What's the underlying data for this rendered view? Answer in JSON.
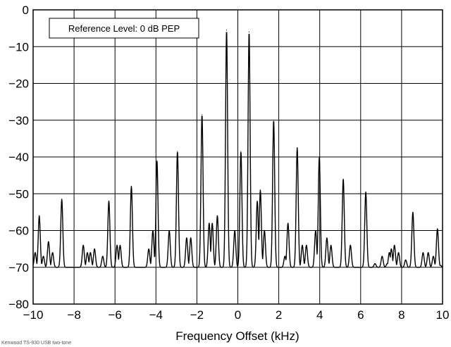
{
  "chart_data": {
    "type": "line",
    "xlabel": "Frequency Offset (kHz)",
    "ylabel": "",
    "xlim": [
      -10,
      10
    ],
    "ylim": [
      -80,
      0
    ],
    "xticks": [
      -10,
      -8,
      -6,
      -4,
      -2,
      0,
      2,
      4,
      6,
      8,
      10
    ],
    "yticks": [
      0,
      -10,
      -20,
      -30,
      -40,
      -50,
      -60,
      -70,
      -80
    ],
    "xtick_labels": [
      "−10",
      "−8",
      "−6",
      "−4",
      "−2",
      "0",
      "2",
      "4",
      "6",
      "8",
      "10"
    ],
    "ytick_labels": [
      "0",
      "−10",
      "−20",
      "−30",
      "−40",
      "−50",
      "−60",
      "−70",
      "−80"
    ],
    "grid": true,
    "annotation": "Reference Level: 0 dB PEP",
    "floor_db": -70,
    "peaks": [
      {
        "x": -9.9,
        "y": -66
      },
      {
        "x": -9.7,
        "y": -56
      },
      {
        "x": -9.5,
        "y": -67
      },
      {
        "x": -9.25,
        "y": -63
      },
      {
        "x": -9.05,
        "y": -66
      },
      {
        "x": -8.6,
        "y": -51.5
      },
      {
        "x": -7.55,
        "y": -64
      },
      {
        "x": -7.35,
        "y": -66
      },
      {
        "x": -7.2,
        "y": -66
      },
      {
        "x": -7.0,
        "y": -65
      },
      {
        "x": -6.6,
        "y": -67
      },
      {
        "x": -6.3,
        "y": -52
      },
      {
        "x": -5.9,
        "y": -64
      },
      {
        "x": -5.75,
        "y": -64
      },
      {
        "x": -5.2,
        "y": -48
      },
      {
        "x": -4.35,
        "y": -65
      },
      {
        "x": -4.15,
        "y": -60
      },
      {
        "x": -3.95,
        "y": -41
      },
      {
        "x": -3.35,
        "y": -60
      },
      {
        "x": -2.95,
        "y": -38.5
      },
      {
        "x": -2.5,
        "y": -62
      },
      {
        "x": -2.3,
        "y": -62
      },
      {
        "x": -1.75,
        "y": -28.5
      },
      {
        "x": -1.4,
        "y": -58
      },
      {
        "x": -1.25,
        "y": -58
      },
      {
        "x": -1.0,
        "y": -56
      },
      {
        "x": -0.55,
        "y": -5.5
      },
      {
        "x": -0.15,
        "y": -60
      },
      {
        "x": 0.15,
        "y": -38.5
      },
      {
        "x": 0.55,
        "y": -6
      },
      {
        "x": 0.95,
        "y": -52
      },
      {
        "x": 1.1,
        "y": -49
      },
      {
        "x": 1.3,
        "y": -60
      },
      {
        "x": 1.75,
        "y": -30
      },
      {
        "x": 2.3,
        "y": -67
      },
      {
        "x": 2.45,
        "y": -58
      },
      {
        "x": 2.9,
        "y": -37.5
      },
      {
        "x": 3.15,
        "y": -64
      },
      {
        "x": 3.35,
        "y": -64
      },
      {
        "x": 3.8,
        "y": -60
      },
      {
        "x": 3.98,
        "y": -40
      },
      {
        "x": 4.35,
        "y": -62
      },
      {
        "x": 4.55,
        "y": -64
      },
      {
        "x": 5.15,
        "y": -46
      },
      {
        "x": 5.5,
        "y": -64
      },
      {
        "x": 6.25,
        "y": -49.5
      },
      {
        "x": 6.7,
        "y": -69
      },
      {
        "x": 7.05,
        "y": -67
      },
      {
        "x": 7.3,
        "y": -69
      },
      {
        "x": 7.4,
        "y": -66
      },
      {
        "x": 7.5,
        "y": -65
      },
      {
        "x": 7.65,
        "y": -64
      },
      {
        "x": 7.85,
        "y": -66
      },
      {
        "x": 8.2,
        "y": -68
      },
      {
        "x": 8.55,
        "y": -55
      },
      {
        "x": 9.05,
        "y": -66
      },
      {
        "x": 9.3,
        "y": -66
      },
      {
        "x": 9.55,
        "y": -67
      },
      {
        "x": 9.75,
        "y": -59.5
      },
      {
        "x": 9.9,
        "y": -69.5
      }
    ]
  },
  "footer_note": "Kenwood TS-930 USB two-tone"
}
